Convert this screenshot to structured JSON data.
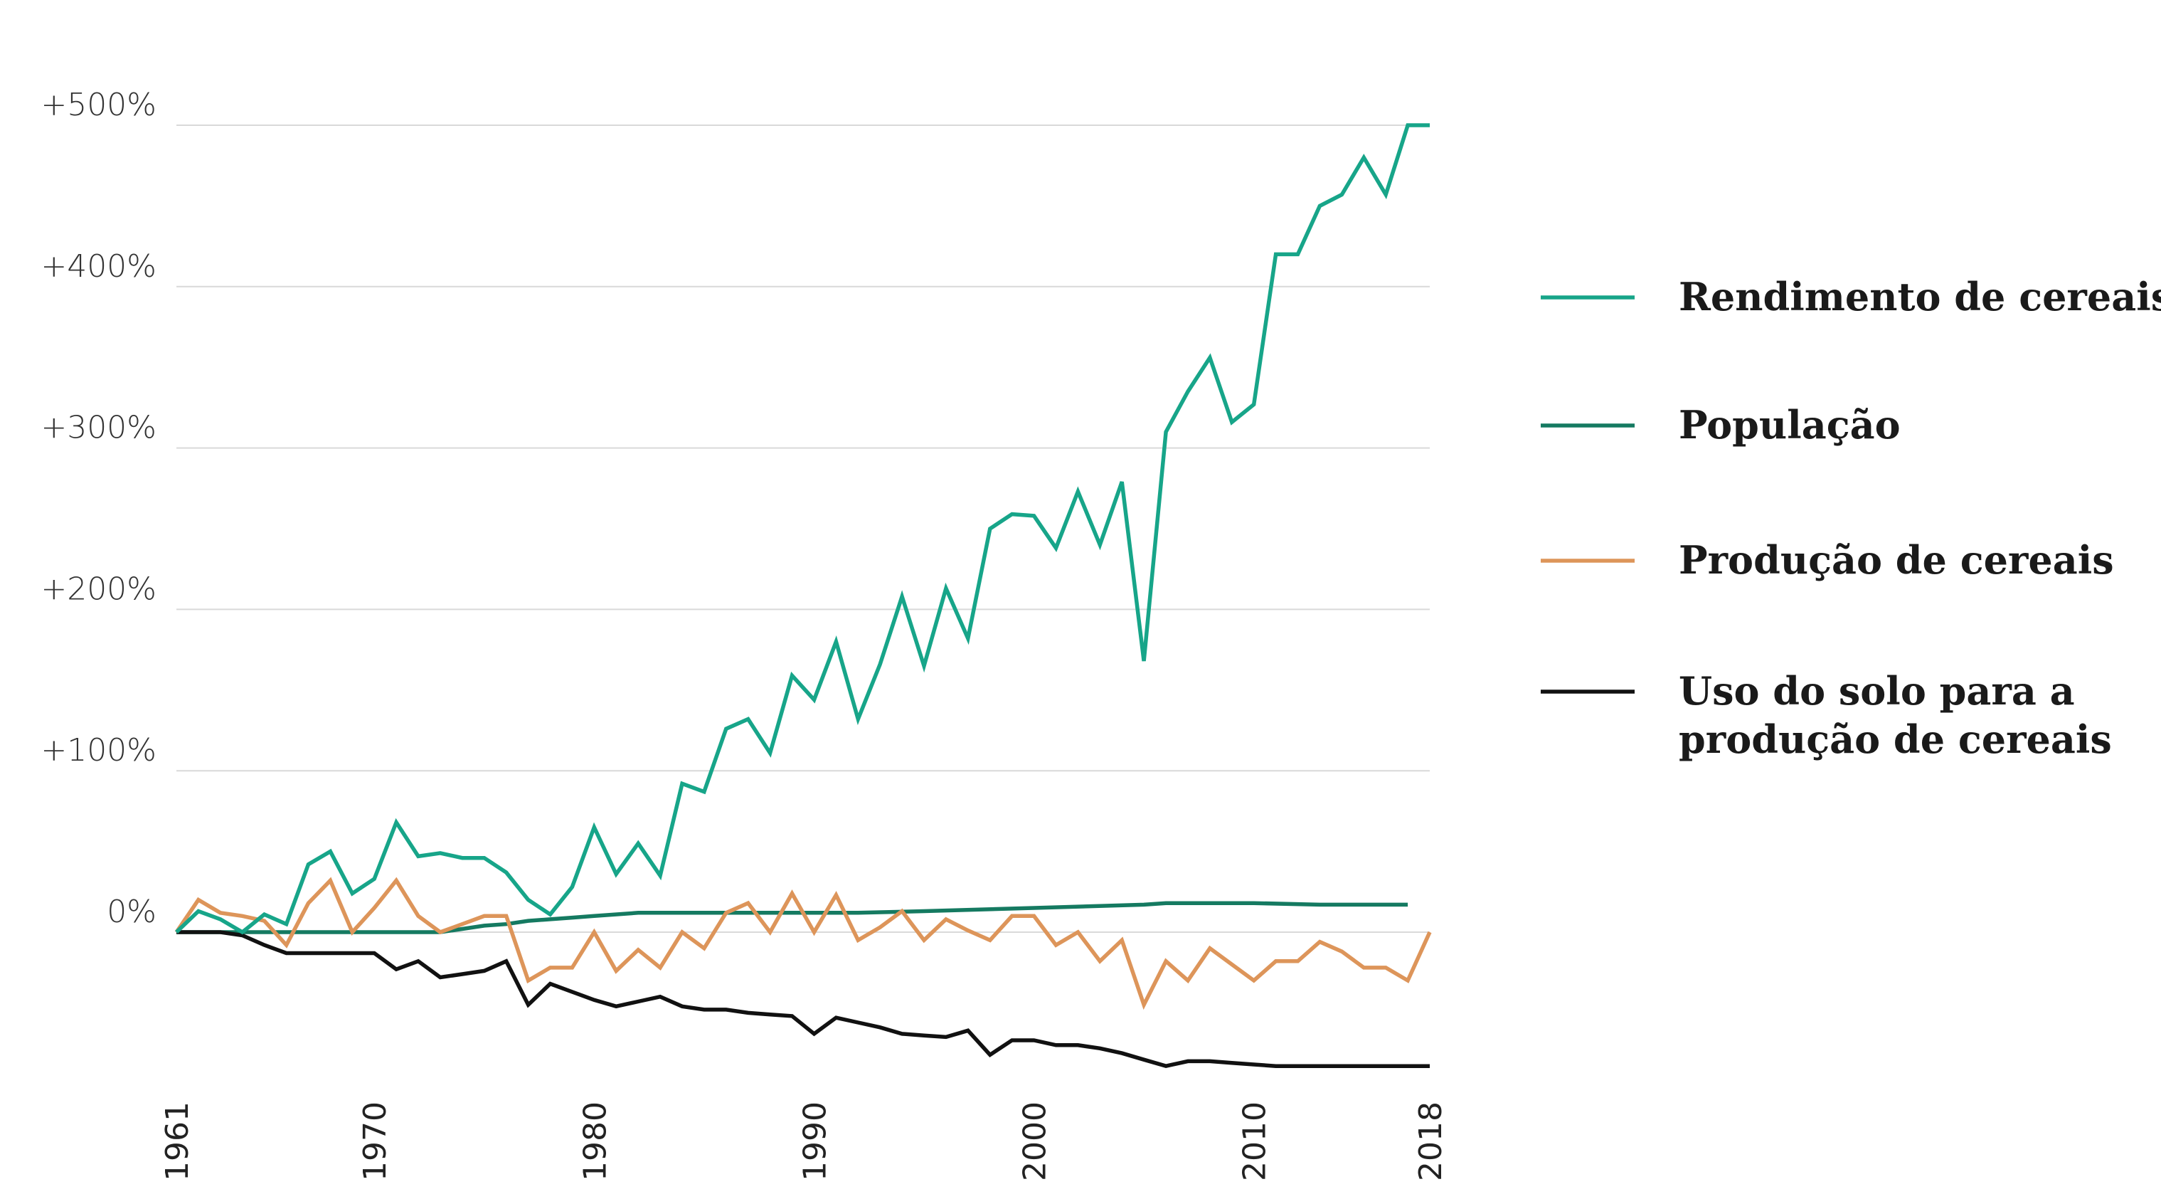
{
  "chart_data": {
    "type": "line",
    "title": "",
    "xlabel": "",
    "ylabel": "",
    "ylim": [
      -100,
      500
    ],
    "yticks": [
      {
        "value": 0,
        "label": "0%"
      },
      {
        "value": 100,
        "label": "+100%"
      },
      {
        "value": 200,
        "label": "+200%"
      },
      {
        "value": 300,
        "label": "+300%"
      },
      {
        "value": 400,
        "label": "+400%"
      },
      {
        "value": 500,
        "label": "+500%"
      }
    ],
    "xlim": [
      1961,
      2018
    ],
    "xticks": [
      {
        "value": 1961,
        "label": "1961"
      },
      {
        "value": 1970,
        "label": "1970"
      },
      {
        "value": 1980,
        "label": "1980"
      },
      {
        "value": 1990,
        "label": "1990"
      },
      {
        "value": 2000,
        "label": "2000"
      },
      {
        "value": 2010,
        "label": "2010"
      },
      {
        "value": 2018,
        "label": "2018"
      }
    ],
    "grid": "horizontal",
    "legend_position": "right",
    "series": [
      {
        "name": "Rendimento de cereais",
        "legend_lines": [
          "Rendimento de cereais"
        ],
        "color": "#17a589",
        "x": [
          1961,
          1962,
          1963,
          1964,
          1965,
          1966,
          1967,
          1968,
          1969,
          1970,
          1971,
          1972,
          1973,
          1974,
          1975,
          1976,
          1977,
          1978,
          1979,
          1980,
          1981,
          1982,
          1983,
          1984,
          1985,
          1986,
          1987,
          1988,
          1989,
          1990,
          1991,
          1992,
          1993,
          1994,
          1995,
          1996,
          1997,
          1998,
          1999,
          2000,
          2001,
          2002,
          2003,
          2004,
          2005,
          2006,
          2007,
          2008,
          2009,
          2010,
          2011,
          2012,
          2013,
          2014,
          2015,
          2016,
          2017,
          2018
        ],
        "y": [
          0,
          13,
          8,
          0,
          11,
          5,
          42,
          50,
          24,
          33,
          68,
          47,
          49,
          46,
          46,
          37,
          20,
          11,
          28,
          65,
          36,
          55,
          35,
          92,
          87,
          126,
          132,
          111,
          159,
          144,
          180,
          132,
          166,
          208,
          165,
          213,
          182,
          250,
          259,
          258,
          238,
          273,
          240,
          279,
          168,
          310,
          335,
          356,
          316,
          327,
          420,
          420,
          450,
          457,
          480,
          457,
          500,
          500
        ]
      },
      {
        "name": "População",
        "legend_lines": [
          "População"
        ],
        "color": "#157a61",
        "x": [
          1961,
          1963,
          1973,
          1974,
          1975,
          1976,
          1977,
          1978,
          1979,
          1980,
          1982,
          1990,
          1992,
          1995,
          2000,
          2005,
          2006,
          2010,
          2013,
          2017
        ],
        "y": [
          0,
          0,
          0,
          2,
          4,
          5,
          7,
          8,
          9,
          10,
          12,
          12,
          12,
          13,
          15,
          17,
          18,
          18,
          17,
          17
        ]
      },
      {
        "name": "Produção de cereais",
        "legend_lines": [
          "Produção de cereais"
        ],
        "color": "#dd955a",
        "x": [
          1961,
          1962,
          1963,
          1964,
          1965,
          1966,
          1967,
          1968,
          1969,
          1970,
          1971,
          1972,
          1973,
          1974,
          1975,
          1976,
          1977,
          1978,
          1979,
          1980,
          1981,
          1982,
          1983,
          1984,
          1985,
          1986,
          1987,
          1988,
          1989,
          1990,
          1991,
          1992,
          1993,
          1994,
          1995,
          1996,
          1997,
          1998,
          1999,
          2000,
          2001,
          2002,
          2003,
          2004,
          2005,
          2006,
          2007,
          2008,
          2009,
          2010,
          2011,
          2012,
          2013,
          2014,
          2015,
          2016,
          2017,
          2018
        ],
        "y": [
          0,
          20,
          12,
          10,
          7,
          -8,
          18,
          32,
          0,
          15,
          32,
          10,
          0,
          5,
          10,
          10,
          -30,
          -22,
          -22,
          0,
          -24,
          -11,
          -22,
          0,
          -10,
          12,
          18,
          0,
          24,
          0,
          23,
          -5,
          3,
          13,
          -5,
          8,
          1,
          -5,
          10,
          10,
          -8,
          0,
          -18,
          -5,
          -45,
          -18,
          -30,
          -10,
          -20,
          -30,
          -18,
          -18,
          -6,
          -12,
          -22,
          -22,
          -30,
          0
        ]
      },
      {
        "name": "Uso do solo para a produção de cereais",
        "legend_lines": [
          "Uso do solo para a",
          "produção de cereais"
        ],
        "color": "#111111",
        "x": [
          1961,
          1962,
          1963,
          1964,
          1965,
          1966,
          1967,
          1968,
          1969,
          1970,
          1971,
          1972,
          1973,
          1974,
          1975,
          1976,
          1977,
          1978,
          1979,
          1980,
          1981,
          1982,
          1983,
          1984,
          1985,
          1986,
          1987,
          1988,
          1989,
          1990,
          1991,
          1992,
          1993,
          1994,
          1995,
          1996,
          1997,
          1998,
          1999,
          2000,
          2001,
          2002,
          2003,
          2004,
          2005,
          2006,
          2007,
          2008,
          2009,
          2010,
          2011,
          2012,
          2013,
          2014,
          2015,
          2016,
          2017,
          2018
        ],
        "y": [
          0,
          0,
          0,
          -2,
          -8,
          -13,
          -13,
          -13,
          -13,
          -13,
          -23,
          -18,
          -28,
          -26,
          -24,
          -18,
          -45,
          -32,
          -37,
          -42,
          -46,
          -43,
          -40,
          -46,
          -48,
          -48,
          -50,
          -51,
          -52,
          -63,
          -53,
          -56,
          -59,
          -63,
          -64,
          -65,
          -61,
          -76,
          -67,
          -67,
          -70,
          -70,
          -72,
          -75,
          -79,
          -83,
          -80,
          -80,
          -81,
          -82,
          -83,
          -83,
          -83,
          -83,
          -83,
          -83,
          -83,
          -83
        ]
      }
    ]
  }
}
